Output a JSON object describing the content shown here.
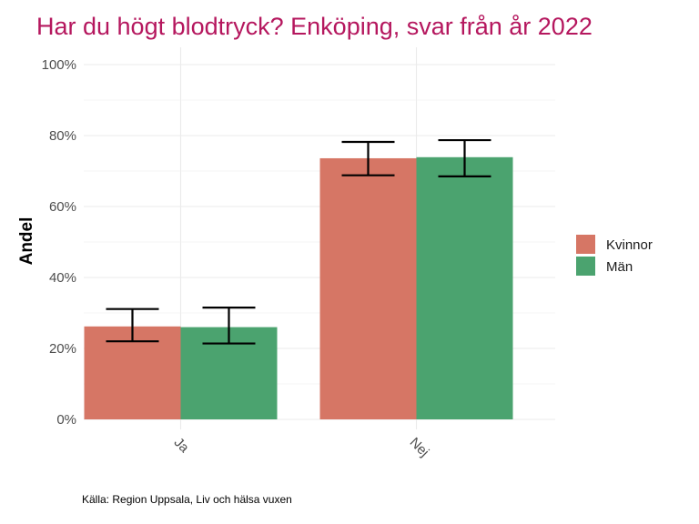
{
  "chart_data": {
    "type": "bar",
    "title": "Har du högt blodtryck? Enköping, svar från år 2022",
    "xlabel": "",
    "ylabel": "Andel",
    "categories": [
      "Ja",
      "Nej"
    ],
    "series": [
      {
        "name": "Kvinnor",
        "color": "#d67665",
        "values": [
          26.2,
          73.6
        ],
        "ci_low": [
          22.0,
          68.8
        ],
        "ci_high": [
          31.1,
          78.2
        ]
      },
      {
        "name": "Män",
        "color": "#4ba36f",
        "values": [
          26.0,
          73.9
        ],
        "ci_low": [
          21.4,
          68.5
        ],
        "ci_high": [
          31.5,
          78.7
        ]
      }
    ],
    "ylim": [
      0,
      100
    ],
    "yticks": [
      "0%",
      "20%",
      "40%",
      "60%",
      "80%",
      "100%"
    ],
    "ytick_values": [
      0,
      20,
      40,
      60,
      80,
      100
    ],
    "grid": true,
    "legend_position": "right",
    "caption": "Källa: Region Uppsala, Liv och hälsa vuxen",
    "title_color": "#b5175e"
  }
}
